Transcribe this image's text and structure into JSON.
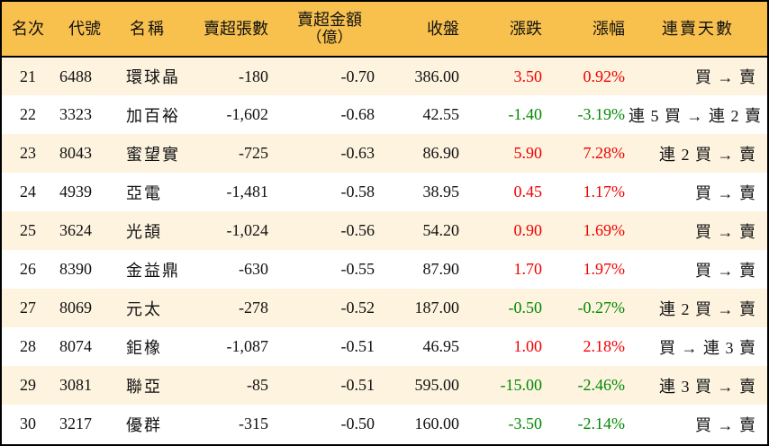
{
  "table": {
    "header_bg": "#F8C14E",
    "row_alt_bg": "#FDF3DF",
    "up_color": "#F00000",
    "down_color": "#008A00",
    "columns": {
      "rank": "名次",
      "code": "代號",
      "name": "名稱",
      "net_sell_lots": "賣超張數",
      "net_sell_amount": "賣超金額",
      "net_sell_amount_unit": "（億）",
      "close": "收盤",
      "change": "漲跌",
      "change_pct": "漲幅",
      "streak": "連賣天數"
    },
    "rows": [
      {
        "rank": "21",
        "code": "6488",
        "name": "環球晶",
        "lots": "-180",
        "amount": "-0.70",
        "close": "386.00",
        "change": "3.50",
        "pct": "0.92%",
        "dir": "up",
        "streak": "買 → 賣"
      },
      {
        "rank": "22",
        "code": "3323",
        "name": "加百裕",
        "lots": "-1,602",
        "amount": "-0.68",
        "close": "42.55",
        "change": "-1.40",
        "pct": "-3.19%",
        "dir": "down",
        "streak": "連 5 買 → 連 2 賣"
      },
      {
        "rank": "23",
        "code": "8043",
        "name": "蜜望實",
        "lots": "-725",
        "amount": "-0.63",
        "close": "86.90",
        "change": "5.90",
        "pct": "7.28%",
        "dir": "up",
        "streak": "連 2 買 → 賣"
      },
      {
        "rank": "24",
        "code": "4939",
        "name": "亞電",
        "lots": "-1,481",
        "amount": "-0.58",
        "close": "38.95",
        "change": "0.45",
        "pct": "1.17%",
        "dir": "up",
        "streak": "買 → 賣"
      },
      {
        "rank": "25",
        "code": "3624",
        "name": "光頡",
        "lots": "-1,024",
        "amount": "-0.56",
        "close": "54.20",
        "change": "0.90",
        "pct": "1.69%",
        "dir": "up",
        "streak": "買 → 賣"
      },
      {
        "rank": "26",
        "code": "8390",
        "name": "金益鼎",
        "lots": "-630",
        "amount": "-0.55",
        "close": "87.90",
        "change": "1.70",
        "pct": "1.97%",
        "dir": "up",
        "streak": "買 → 賣"
      },
      {
        "rank": "27",
        "code": "8069",
        "name": "元太",
        "lots": "-278",
        "amount": "-0.52",
        "close": "187.00",
        "change": "-0.50",
        "pct": "-0.27%",
        "dir": "down",
        "streak": "連 2 買 → 賣"
      },
      {
        "rank": "28",
        "code": "8074",
        "name": "鉅橡",
        "lots": "-1,087",
        "amount": "-0.51",
        "close": "46.95",
        "change": "1.00",
        "pct": "2.18%",
        "dir": "up",
        "streak": "買 → 連 3 賣"
      },
      {
        "rank": "29",
        "code": "3081",
        "name": "聯亞",
        "lots": "-85",
        "amount": "-0.51",
        "close": "595.00",
        "change": "-15.00",
        "pct": "-2.46%",
        "dir": "down",
        "streak": "連 3 買 → 賣"
      },
      {
        "rank": "30",
        "code": "3217",
        "name": "優群",
        "lots": "-315",
        "amount": "-0.50",
        "close": "160.00",
        "change": "-3.50",
        "pct": "-2.14%",
        "dir": "down",
        "streak": "買 → 賣"
      }
    ]
  }
}
